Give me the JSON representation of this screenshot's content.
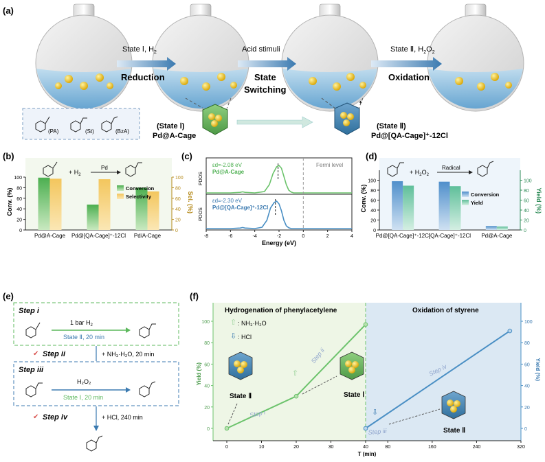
{
  "panel_a": {
    "label": "(a)",
    "arrow1_top": "State Ⅰ, H",
    "arrow1_sub": "2",
    "arrow1_bottom": "Reduction",
    "arrow2_top": "Acid stimuli",
    "arrow2_bottom1": "State",
    "arrow2_bottom2": "Switching",
    "arrow3_top": "State Ⅱ, H",
    "arrow3_sub": "2",
    "arrow3_sub2": "O",
    "arrow3_sub3": "2",
    "arrow3_bottom": "Oxidation",
    "legend_pa": "(PA)",
    "legend_st": "(St)",
    "legend_bza": "(BzA)",
    "state1_line1": "(State Ⅰ)",
    "state1_line2": "Pd@A-Cage",
    "state2_line1": "(State Ⅱ)",
    "state2_line2": "Pd@[QA-Cage]⁺-12Cl"
  },
  "panel_b": {
    "label": "(b)",
    "reaction_plus": "+  H",
    "reaction_sub": "2",
    "catalyst": "Pd",
    "chart_data": {
      "type": "bar",
      "categories": [
        "Pd@A-Cage",
        "Pd@[QA-Cage]⁺-12Cl",
        "Pd/A-Cage"
      ],
      "series": [
        {
          "name": "Conversion",
          "values": [
            99,
            48,
            80
          ],
          "color": "#5cb85c"
        },
        {
          "name": "Selectivity",
          "values": [
            97,
            96,
            73
          ],
          "color": "#f0c96a"
        }
      ],
      "ylabel": "Conv. (%)",
      "y2label": "Sel. (%)",
      "ylim": [
        0,
        100
      ],
      "yticks": [
        "0",
        "20",
        "40",
        "60",
        "80",
        "100"
      ]
    }
  },
  "panel_c": {
    "label": "(c)",
    "top_ed": "εd=-2.08 eV",
    "top_name": "Pd@A-Cage",
    "bottom_ed": "εd=-2.30 eV",
    "bottom_name": "Pd@[QA-Cage]⁺-12Cl",
    "fermi": "Fermi level",
    "ylabel_top": "PDOS",
    "ylabel_bottom": "PDOS",
    "chart_data": {
      "type": "line",
      "xlabel": "Energy (eV)",
      "xlim": [
        -8,
        4
      ],
      "xticks": [
        "-8",
        "-6",
        "-4",
        "-2",
        "0",
        "2",
        "4"
      ],
      "series": [
        {
          "name": "Pd@A-Cage",
          "x": [
            -8,
            -6,
            -5.2,
            -5,
            -4.8,
            -4,
            -3.2,
            -2.8,
            -2.5,
            -2.2,
            -2.0,
            -1.8,
            -1.6,
            -1.4,
            -1.2,
            -1.0,
            -0.8,
            0,
            4
          ],
          "y": [
            0,
            0,
            0.02,
            0.04,
            0.02,
            0,
            0.05,
            0.3,
            0.7,
            0.95,
            1.0,
            0.9,
            0.6,
            0.3,
            0.1,
            0.03,
            0,
            0,
            0
          ]
        },
        {
          "name": "Pd@[QA-Cage]⁺-12Cl",
          "x": [
            -8,
            -6,
            -5.2,
            -5,
            -4.8,
            -4,
            -3.4,
            -3.0,
            -2.7,
            -2.4,
            -2.2,
            -2.0,
            -1.8,
            -1.6,
            -1.4,
            -1.2,
            -1.0,
            0,
            4
          ],
          "y": [
            0,
            0,
            0.02,
            0.04,
            0.02,
            0,
            0.05,
            0.3,
            0.75,
            0.95,
            1.0,
            0.9,
            0.65,
            0.3,
            0.1,
            0.03,
            0,
            0,
            0
          ]
        }
      ]
    }
  },
  "panel_d": {
    "label": "(d)",
    "reaction_plus": "+ H",
    "reaction_sub": "2",
    "reaction_sub2": "O",
    "reaction_sub3": "2",
    "catalyst": "Radical",
    "chart_data": {
      "type": "bar",
      "categories": [
        "Pd@[QA-Cage]⁺-12Cl",
        "[QA-Cage]⁺-12Cl",
        "Pd@A-Cage"
      ],
      "series": [
        {
          "name": "Conversion",
          "values": [
            98,
            97,
            8
          ],
          "color": "#6fa3d6"
        },
        {
          "name": "Yield",
          "values": [
            89,
            88,
            7
          ],
          "color": "#7fc8a9"
        }
      ],
      "ylabel": "Conv. (%)",
      "y2label": "Yield (%)",
      "ylim": [
        0,
        120
      ],
      "yticks": [
        "0",
        "20",
        "40",
        "60",
        "80",
        "100"
      ]
    }
  },
  "panel_e": {
    "label": "(e)",
    "step1": "Step i",
    "step1_cond_top": "1 bar H",
    "step1_cond_sub": "2",
    "step1_cond_bottom": "State Ⅱ, 20 min",
    "step2": "Step ii",
    "step2_cond": "+ NH₃·H₂O, 20 min",
    "step3": "Step iii",
    "step3_cond_top": "H₂O₂",
    "step3_cond_bottom": "State Ⅰ, 20 min",
    "step4": "Step iv",
    "step4_cond": "+ HCl, 240 min"
  },
  "panel_f": {
    "label": "(f)",
    "region1_title": "Hydrogenation of phenylacetylene",
    "region2_title": "Oxidation of styrene",
    "legend_nh3": ": NH₃·H₂O",
    "legend_hcl": ": HCl",
    "state2_a": "State Ⅱ",
    "state1": "State Ⅰ",
    "state2_b": "State Ⅱ",
    "step_i": "Step i",
    "step_ii": "Step ii",
    "step_iii": "Step iii",
    "step_iv": "Step iv",
    "chart_data": {
      "type": "line",
      "xlabel": "T (min)",
      "ylabel": "Yield (%)",
      "y2label": "Yield (%)",
      "xticks": [
        "0",
        "10",
        "20",
        "30",
        "40",
        "80",
        "160",
        "240",
        "320"
      ],
      "yticks": [
        "0",
        "20",
        "40",
        "60",
        "80",
        "100"
      ],
      "ylim": [
        0,
        100
      ],
      "series": [
        {
          "name": "Hydrogenation",
          "x": [
            0,
            20,
            40
          ],
          "y": [
            0,
            30,
            97
          ],
          "color": "#6cc36c"
        },
        {
          "name": "Oxidation",
          "x": [
            40,
            300
          ],
          "y": [
            0,
            91
          ],
          "color": "#4a8fc4"
        }
      ]
    }
  }
}
